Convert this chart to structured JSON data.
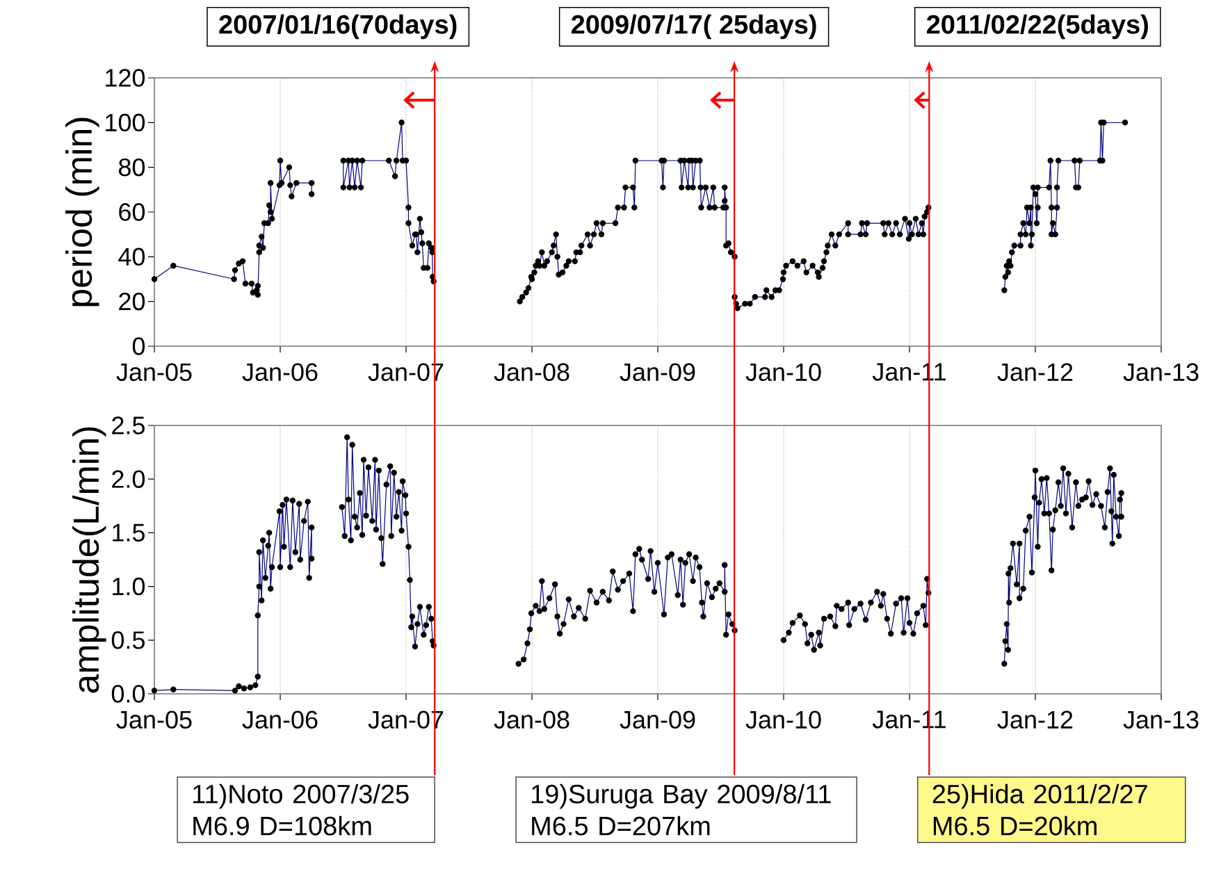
{
  "chart_data": [
    {
      "type": "line",
      "ylabel": "period (min)",
      "xlim": [
        "2005-01-01",
        "2013-01-01"
      ],
      "ylim": [
        0,
        120
      ],
      "xticks": [
        {
          "value": "2005-01-01",
          "label": "Jan-05"
        },
        {
          "value": "2006-01-01",
          "label": "Jan-06"
        },
        {
          "value": "2007-01-01",
          "label": "Jan-07"
        },
        {
          "value": "2008-01-01",
          "label": "Jan-08"
        },
        {
          "value": "2009-01-01",
          "label": "Jan-09"
        },
        {
          "value": "2010-01-01",
          "label": "Jan-10"
        },
        {
          "value": "2011-01-01",
          "label": "Jan-11"
        },
        {
          "value": "2012-01-01",
          "label": "Jan-12"
        },
        {
          "value": "2013-01-01",
          "label": "Jan-13"
        }
      ],
      "yticks": [
        0,
        20,
        40,
        60,
        80,
        100,
        120
      ],
      "grid": "x",
      "marker": "circle",
      "x": [
        "2005-01-01",
        "2005-02-25",
        "2005-08-20",
        "2005-08-23",
        "2005-09-03",
        "2005-09-14",
        "2005-09-22",
        "2005-10-10",
        "2005-10-14",
        "2005-10-25",
        "2005-10-28",
        "2005-10-28",
        "2005-11-01",
        "2005-11-01",
        "2005-11-08",
        "2005-11-12",
        "2005-11-16",
        "2005-11-27",
        "2005-11-30",
        "2005-12-04",
        "2005-12-04",
        "2005-12-08",
        "2005-12-30",
        "2006-01-01",
        "2006-01-05",
        "2006-01-27",
        "2006-01-30",
        "2006-02-03",
        "2006-02-17",
        "2006-04-02",
        "2006-04-02",
        "2006-05-20",
        "2006-07-03",
        "2006-07-03",
        "2006-07-18",
        "2006-07-21",
        "2006-07-29",
        "2006-08-05",
        "2006-08-12",
        "2006-08-23",
        "2006-08-27",
        "2006-11-12",
        "2006-11-30",
        "2006-12-04",
        "2006-12-19",
        "2006-12-22",
        "2007-01-01",
        "2007-01-08",
        "2007-01-08",
        "2007-01-19",
        "2007-01-27",
        "2007-01-30",
        "2007-02-03",
        "2007-02-10",
        "2007-02-14",
        "2007-02-17",
        "2007-02-21",
        "2007-03-04",
        "2007-03-08",
        "2007-03-16",
        "2007-03-18",
        "2007-03-19",
        "2007-03-22",
        "2007-07-21",
        "2007-11-27",
        "2007-12-04",
        "2007-12-15",
        "2007-12-22",
        "2007-12-30",
        "2008-01-01",
        "2008-01-08",
        "2008-01-12",
        "2008-01-19",
        "2008-01-23",
        "2008-01-30",
        "2008-02-06",
        "2008-02-14",
        "2008-02-28",
        "2008-03-04",
        "2008-03-11",
        "2008-03-15",
        "2008-03-19",
        "2008-03-30",
        "2008-04-10",
        "2008-04-17",
        "2008-05-05",
        "2008-05-09",
        "2008-05-20",
        "2008-05-24",
        "2008-06-11",
        "2008-06-18",
        "2008-06-29",
        "2008-07-07",
        "2008-07-21",
        "2008-07-25",
        "2008-08-31",
        "2008-09-07",
        "2008-09-25",
        "2008-09-29",
        "2008-10-21",
        "2008-10-25",
        "2008-10-28",
        "2009-01-12",
        "2009-01-16",
        "2009-01-19",
        "2009-03-08",
        "2009-03-11",
        "2009-03-19",
        "2009-03-30",
        "2009-04-02",
        "2009-04-10",
        "2009-04-13",
        "2009-04-21",
        "2009-05-03",
        "2009-05-05",
        "2009-05-07",
        "2009-05-20",
        "2009-05-31",
        "2009-06-11",
        "2009-06-15",
        "2009-07-10",
        "2009-07-14",
        "2009-07-14",
        "2009-07-18",
        "2009-07-18",
        "2009-07-25",
        "2009-08-01",
        "2009-08-12",
        "2009-08-12",
        "2009-08-16",
        "2009-08-20",
        "2009-09-11",
        "2009-09-25",
        "2009-10-10",
        "2009-11-08",
        "2009-11-12",
        "2009-11-27",
        "2009-12-08",
        "2009-12-19",
        "2009-12-30",
        "2010-01-01",
        "2010-01-08",
        "2010-01-27",
        "2010-02-10",
        "2010-02-28",
        "2010-03-08",
        "2010-03-26",
        "2010-04-10",
        "2010-04-13",
        "2010-04-24",
        "2010-04-28",
        "2010-05-05",
        "2010-05-09",
        "2010-05-20",
        "2010-05-31",
        "2010-06-11",
        "2010-07-07",
        "2010-07-07",
        "2010-08-12",
        "2010-08-16",
        "2010-08-27",
        "2010-08-31",
        "2010-10-17",
        "2010-10-21",
        "2010-11-01",
        "2010-11-12",
        "2010-11-23",
        "2010-12-04",
        "2010-12-19",
        "2010-12-30",
        "2011-01-01",
        "2011-01-08",
        "2011-01-19",
        "2011-01-27",
        "2011-02-06",
        "2011-02-10",
        "2011-02-14",
        "2011-02-21",
        "2011-02-25",
        "2011-06-15",
        "2011-10-03",
        "2011-10-06",
        "2011-10-10",
        "2011-10-14",
        "2011-10-17",
        "2011-10-21",
        "2011-10-25",
        "2011-11-01",
        "2011-11-19",
        "2011-11-19",
        "2011-11-27",
        "2011-12-04",
        "2011-12-08",
        "2011-12-15",
        "2011-12-19",
        "2011-12-19",
        "2011-12-22",
        "2011-12-26",
        "2012-01-01",
        "2012-01-05",
        "2012-01-08",
        "2012-01-08",
        "2012-02-10",
        "2012-02-14",
        "2012-02-17",
        "2012-02-17",
        "2012-02-21",
        "2012-02-28",
        "2012-03-04",
        "2012-03-04",
        "2012-03-08",
        "2012-04-24",
        "2012-04-28",
        "2012-05-05",
        "2012-05-09",
        "2012-07-07",
        "2012-07-10",
        "2012-07-14",
        "2012-07-18",
        "2012-09-18"
      ],
      "series": [
        {
          "color": "#000080",
          "values": [
            30,
            36,
            30,
            34,
            37,
            38,
            28,
            28,
            24,
            25,
            27,
            23,
            42,
            45,
            49,
            44,
            55,
            55,
            63,
            60,
            73,
            57,
            72,
            83,
            73,
            80,
            72,
            67,
            73,
            73,
            68,
            null,
            83,
            71,
            83,
            71,
            83,
            71,
            83,
            71,
            83,
            83,
            76,
            83,
            100,
            83,
            83,
            62,
            55,
            45,
            50,
            50,
            42,
            57,
            51,
            46,
            35,
            35,
            46,
            44,
            42,
            31,
            29,
            null,
            20,
            22,
            24,
            26,
            31,
            30,
            33,
            36,
            38,
            36,
            42,
            36,
            38,
            42,
            45,
            50,
            40,
            32,
            33,
            36,
            38,
            38,
            42,
            42,
            45,
            50,
            45,
            50,
            55,
            50,
            55,
            55,
            62,
            62,
            71,
            71,
            62,
            83,
            83,
            71,
            83,
            83,
            71,
            83,
            71,
            83,
            83,
            71,
            83,
            83,
            71,
            62,
            71,
            62,
            71,
            62,
            62,
            65,
            71,
            62,
            45,
            46,
            42,
            40,
            22,
            19,
            17,
            19,
            19,
            22,
            22,
            25,
            22,
            25,
            25,
            30,
            33,
            36,
            38,
            36,
            38,
            33,
            36,
            33,
            31,
            35,
            38,
            42,
            45,
            50,
            45,
            50,
            55,
            50,
            50,
            55,
            50,
            55,
            55,
            50,
            55,
            50,
            55,
            50,
            57,
            48,
            55,
            50,
            57,
            50,
            55,
            50,
            58,
            60,
            62,
            null,
            25,
            31,
            36,
            33,
            38,
            36,
            42,
            45,
            45,
            50,
            55,
            50,
            62,
            55,
            62,
            45,
            50,
            71,
            68,
            55,
            62,
            71,
            71,
            83,
            62,
            50,
            55,
            50,
            62,
            71,
            83,
            83,
            71,
            71,
            83,
            83,
            100,
            83,
            100,
            100
          ]
        }
      ],
      "annotations": [
        "2007/01/16(70days)",
        "2009/07/17( 25days)",
        "2011/02/22(5days)"
      ],
      "ref_lines": [
        {
          "axis": "x",
          "value": "2007-03-25",
          "color": "#ff0000"
        },
        {
          "axis": "x",
          "value": "2009-08-11",
          "color": "#ff0000"
        },
        {
          "axis": "x",
          "value": "2011-02-27",
          "color": "#ff0000"
        }
      ]
    },
    {
      "type": "line",
      "ylabel": "amplitude(L/min)",
      "xlim": [
        "2005-01-01",
        "2013-01-01"
      ],
      "ylim": [
        0,
        2.5
      ],
      "xticks": [
        {
          "value": "2005-01-01",
          "label": "Jan-05"
        },
        {
          "value": "2006-01-01",
          "label": "Jan-06"
        },
        {
          "value": "2007-01-01",
          "label": "Jan-07"
        },
        {
          "value": "2008-01-01",
          "label": "Jan-08"
        },
        {
          "value": "2009-01-01",
          "label": "Jan-09"
        },
        {
          "value": "2010-01-01",
          "label": "Jan-10"
        },
        {
          "value": "2011-01-01",
          "label": "Jan-11"
        },
        {
          "value": "2012-01-01",
          "label": "Jan-12"
        },
        {
          "value": "2013-01-01",
          "label": "Jan-13"
        }
      ],
      "yticks": [
        {
          "value": 0,
          "label": "0.0"
        },
        0.5,
        {
          "value": 1,
          "label": "1.0"
        },
        1.5,
        {
          "value": 2,
          "label": "2.0"
        },
        2.5
      ],
      "grid": "x",
      "marker": "circle",
      "x": [
        "2005-01-01",
        "2005-02-25",
        "2005-08-23",
        "2005-09-03",
        "2005-09-18",
        "2005-10-06",
        "2005-10-21",
        "2005-10-28",
        "2005-10-28",
        "2005-11-01",
        "2005-11-01",
        "2005-11-08",
        "2005-11-12",
        "2005-11-19",
        "2005-11-27",
        "2005-11-30",
        "2005-12-04",
        "2005-12-08",
        "2005-12-30",
        "2006-01-01",
        "2006-01-08",
        "2006-01-12",
        "2006-01-19",
        "2006-01-30",
        "2006-02-06",
        "2006-02-14",
        "2006-02-25",
        "2006-02-28",
        "2006-03-11",
        "2006-03-22",
        "2006-03-26",
        "2006-04-02",
        "2006-04-02",
        "2006-05-16",
        "2006-06-29",
        "2006-07-07",
        "2006-07-14",
        "2006-07-18",
        "2006-07-25",
        "2006-07-29",
        "2006-08-05",
        "2006-08-12",
        "2006-08-20",
        "2006-08-27",
        "2006-08-31",
        "2006-09-07",
        "2006-09-14",
        "2006-09-25",
        "2006-10-03",
        "2006-10-06",
        "2006-10-14",
        "2006-10-21",
        "2006-10-25",
        "2006-11-05",
        "2006-11-16",
        "2006-11-19",
        "2006-11-27",
        "2006-12-04",
        "2006-12-11",
        "2006-12-19",
        "2006-12-22",
        "2006-12-30",
        "2007-01-01",
        "2007-01-08",
        "2007-01-12",
        "2007-01-16",
        "2007-01-19",
        "2007-01-27",
        "2007-02-03",
        "2007-02-10",
        "2007-02-21",
        "2007-02-28",
        "2007-03-08",
        "2007-03-15",
        "2007-03-19",
        "2007-03-22",
        "2007-07-21",
        "2007-11-23",
        "2007-12-08",
        "2007-12-19",
        "2007-12-26",
        "2007-12-30",
        "2008-01-12",
        "2008-01-23",
        "2008-01-30",
        "2008-02-06",
        "2008-02-21",
        "2008-03-08",
        "2008-03-15",
        "2008-03-22",
        "2008-04-02",
        "2008-04-17",
        "2008-05-02",
        "2008-05-16",
        "2008-06-04",
        "2008-06-18",
        "2008-07-07",
        "2008-07-25",
        "2008-08-12",
        "2008-08-23",
        "2008-09-07",
        "2008-09-22",
        "2008-10-10",
        "2008-10-21",
        "2008-10-28",
        "2008-11-08",
        "2008-11-16",
        "2008-12-04",
        "2008-12-11",
        "2008-12-22",
        "2009-01-01",
        "2009-01-19",
        "2009-01-30",
        "2009-02-10",
        "2009-02-28",
        "2009-03-08",
        "2009-03-15",
        "2009-03-22",
        "2009-04-02",
        "2009-04-13",
        "2009-04-21",
        "2009-05-02",
        "2009-05-09",
        "2009-05-13",
        "2009-05-24",
        "2009-06-07",
        "2009-06-18",
        "2009-06-29",
        "2009-07-14",
        "2009-07-14",
        "2009-07-18",
        "2009-07-25",
        "2009-08-05",
        "2009-08-12",
        "2009-10-21",
        "2010-01-01",
        "2010-01-16",
        "2010-01-27",
        "2010-02-17",
        "2010-03-04",
        "2010-03-11",
        "2010-03-22",
        "2010-03-30",
        "2010-04-13",
        "2010-04-17",
        "2010-04-28",
        "2010-05-16",
        "2010-05-31",
        "2010-06-04",
        "2010-06-18",
        "2010-07-07",
        "2010-07-10",
        "2010-07-25",
        "2010-08-12",
        "2010-08-27",
        "2010-09-11",
        "2010-09-29",
        "2010-10-10",
        "2010-10-17",
        "2010-10-28",
        "2010-11-08",
        "2010-11-23",
        "2010-12-08",
        "2010-12-15",
        "2010-12-26",
        "2011-01-01",
        "2011-01-12",
        "2011-01-23",
        "2011-02-10",
        "2011-02-17",
        "2011-02-21",
        "2011-02-25",
        "2011-06-15",
        "2011-10-03",
        "2011-10-06",
        "2011-10-10",
        "2011-10-14",
        "2011-10-15",
        "2011-10-17",
        "2011-10-21",
        "2011-10-28",
        "2011-11-08",
        "2011-11-16",
        "2011-11-16",
        "2011-11-27",
        "2011-12-04",
        "2011-12-15",
        "2011-12-22",
        "2011-12-30",
        "2012-01-01",
        "2012-01-08",
        "2012-01-12",
        "2012-01-19",
        "2012-01-27",
        "2012-02-03",
        "2012-02-10",
        "2012-02-17",
        "2012-02-21",
        "2012-02-28",
        "2012-03-08",
        "2012-03-15",
        "2012-03-22",
        "2012-03-30",
        "2012-04-06",
        "2012-04-17",
        "2012-04-28",
        "2012-05-05",
        "2012-05-16",
        "2012-05-27",
        "2012-06-04",
        "2012-06-15",
        "2012-06-26",
        "2012-07-10",
        "2012-07-21",
        "2012-07-29",
        "2012-08-05",
        "2012-08-09",
        "2012-08-12",
        "2012-08-16",
        "2012-08-23",
        "2012-08-31",
        "2012-09-03",
        "2012-09-07",
        "2012-09-07"
      ],
      "series": [
        {
          "color": "#000080",
          "values": [
            0.03,
            0.04,
            0.03,
            0.07,
            0.05,
            0.06,
            0.08,
            0.16,
            0.73,
            1.0,
            1.32,
            0.87,
            1.43,
            1.08,
            1.38,
            1.5,
            0.98,
            1.18,
            1.7,
            1.18,
            1.76,
            1.37,
            1.81,
            1.18,
            1.8,
            1.32,
            1.77,
            1.25,
            1.61,
            1.79,
            1.08,
            1.55,
            1.26,
            null,
            1.74,
            1.47,
            2.39,
            1.81,
            1.43,
            2.32,
            1.65,
            1.55,
            1.87,
            1.48,
            2.18,
            1.66,
            2.11,
            1.61,
            2.18,
            1.53,
            2.08,
            1.45,
            1.21,
            1.95,
            2.12,
            1.47,
            2.06,
            1.65,
            1.88,
            1.52,
            1.98,
            1.85,
            1.68,
            1.37,
            1.06,
            0.62,
            0.72,
            0.44,
            0.65,
            0.81,
            0.55,
            0.64,
            0.81,
            0.7,
            0.49,
            0.45,
            null,
            0.28,
            0.32,
            0.47,
            0.6,
            0.75,
            0.82,
            0.77,
            1.05,
            0.79,
            0.89,
            1.02,
            0.72,
            0.56,
            0.65,
            0.88,
            0.72,
            0.8,
            0.7,
            0.96,
            0.85,
            0.95,
            0.87,
            1.14,
            0.97,
            1.05,
            1.12,
            0.77,
            1.3,
            1.35,
            1.25,
            1.07,
            1.33,
            0.95,
            1.22,
            0.74,
            1.27,
            1.3,
            0.92,
            1.25,
            0.83,
            1.22,
            1.3,
            1.05,
            1.27,
            1.18,
            0.85,
            0.72,
            1.03,
            0.9,
            0.98,
            1.03,
            0.95,
            1.2,
            0.55,
            0.74,
            0.65,
            0.59,
            null,
            0.5,
            0.57,
            0.66,
            0.73,
            0.65,
            0.47,
            0.55,
            0.41,
            0.57,
            0.45,
            0.7,
            0.72,
            0.63,
            0.82,
            0.79,
            0.85,
            0.64,
            0.79,
            0.84,
            0.69,
            0.85,
            0.95,
            0.82,
            0.93,
            0.7,
            0.56,
            0.84,
            0.89,
            0.57,
            0.89,
            0.66,
            0.56,
            0.75,
            0.82,
            0.64,
            1.07,
            0.94,
            null,
            0.28,
            0.49,
            0.65,
            0.41,
            1.12,
            0.85,
            1.17,
            1.4,
            1.02,
            1.4,
            0.89,
            0.98,
            1.52,
            1.65,
            1.13,
            1.83,
            2.08,
            1.37,
            1.78,
            2.0,
            1.68,
            2.01,
            1.68,
            1.15,
            1.53,
            1.71,
            1.97,
            1.75,
            2.1,
            1.68,
            2.05,
            1.55,
            1.97,
            1.75,
            1.81,
            1.83,
            1.98,
            1.76,
            1.86,
            1.75,
            1.55,
            1.88,
            2.1,
            1.7,
            1.4,
            2.04,
            1.65,
            1.47,
            1.81,
            1.87,
            1.65
          ]
        }
      ],
      "ref_lines": [
        {
          "axis": "x",
          "value": "2007-03-25",
          "color": "#ff0000",
          "label": "11)Noto 2007/3/25 M6.9 D=108km"
        },
        {
          "axis": "x",
          "value": "2009-08-11",
          "color": "#ff0000",
          "label": "19)Suruga Bay 2009/8/11 M6.5 D=207km"
        },
        {
          "axis": "x",
          "value": "2011-02-27",
          "color": "#ff0000",
          "label": "25)Hida 2011/2/27 M6.5 D=20km"
        }
      ]
    }
  ]
}
